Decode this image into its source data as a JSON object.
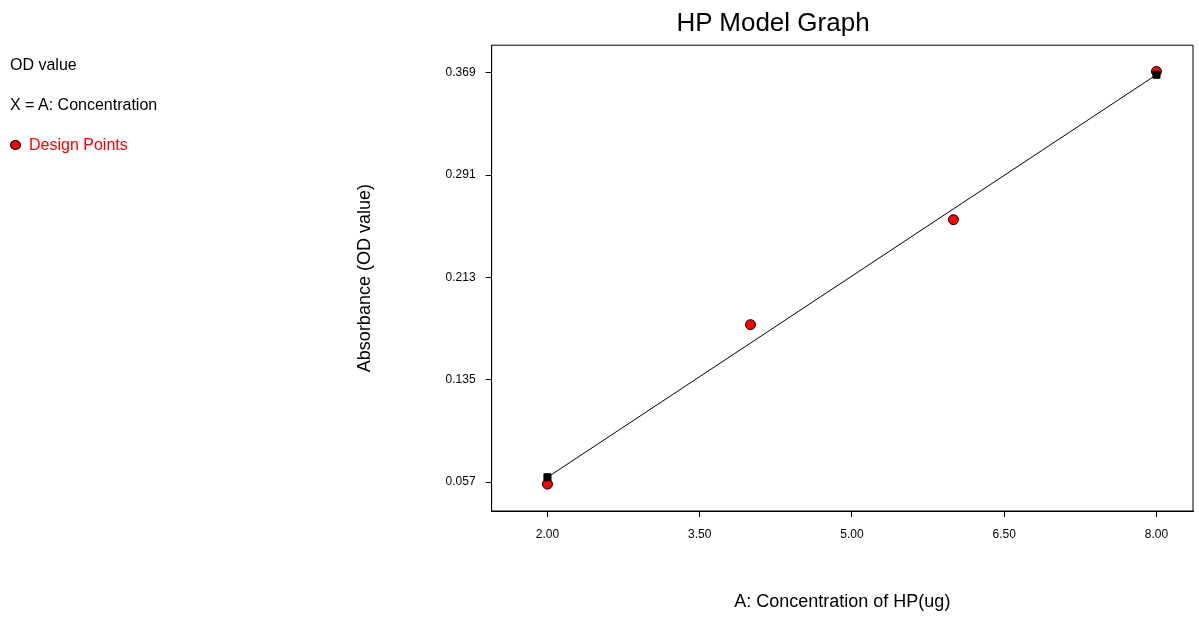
{
  "chart_data": {
    "type": "scatter",
    "title": "HP Model Graph",
    "xlabel": "A: Concentration of HP(ug)",
    "ylabel": "Absorbance (OD value)",
    "annotations": [
      "OD value",
      "X = A: Concentration"
    ],
    "xlim": [
      1.45,
      8.36
    ],
    "xticks": [
      {
        "value": 2,
        "label": "2.00"
      },
      {
        "value": 3.5,
        "label": "3.50"
      },
      {
        "value": 5,
        "label": "5.00"
      },
      {
        "value": 6.5,
        "label": "6.50"
      },
      {
        "value": 8,
        "label": "8.00"
      }
    ],
    "ylim": [
      0.035,
      0.39
    ],
    "yticks": [
      0.057,
      0.135,
      0.213,
      0.291,
      0.369
    ],
    "grid": false,
    "legend": "left",
    "series": [
      {
        "name": "Design Points",
        "type": "scatter",
        "color": "#ff0000",
        "marker": "circle",
        "x": [
          2,
          4,
          6,
          8
        ],
        "values": [
          0.0555,
          0.177,
          0.257,
          0.37
        ]
      },
      {
        "type": "line",
        "color": "#000000",
        "marker": "square",
        "line_style": "solid",
        "x": [
          2,
          8
        ],
        "values": [
          0.0607,
          0.3675
        ]
      }
    ]
  }
}
